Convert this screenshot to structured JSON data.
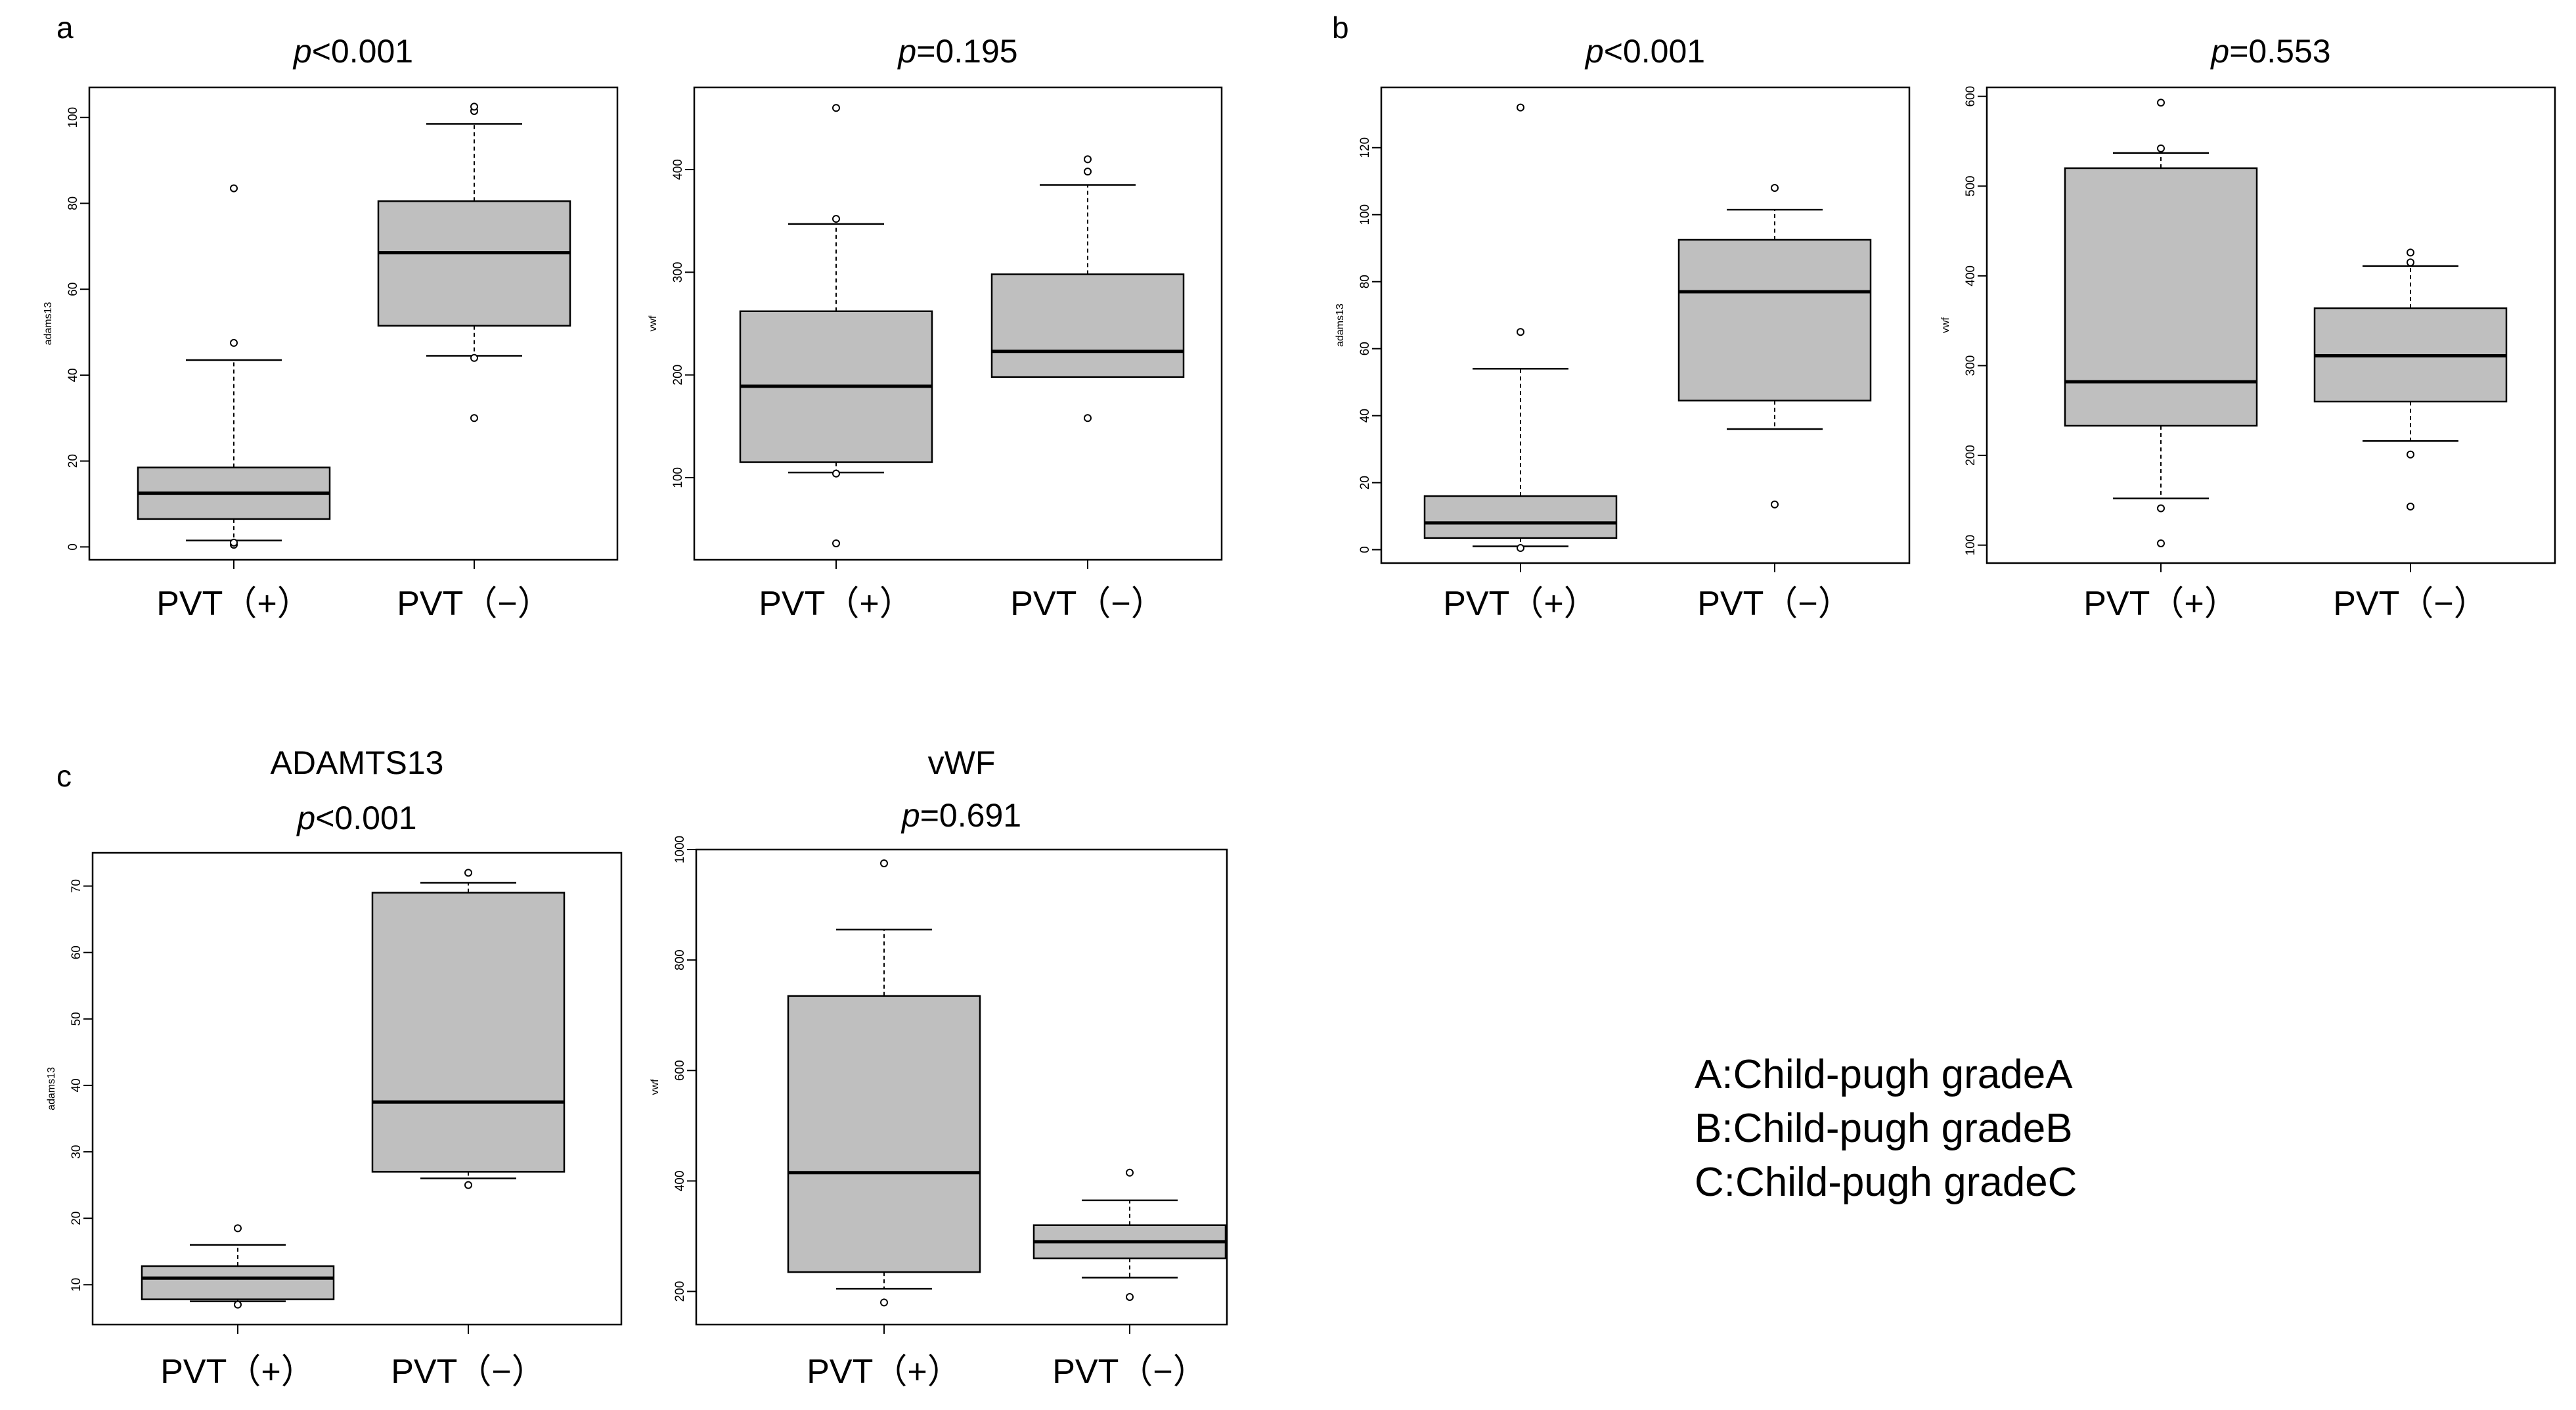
{
  "legend": [
    "A:Child-pugh gradeA",
    "B:Child-pugh gradeB",
    "C:Child-pugh gradeC"
  ],
  "chart_data": [
    {
      "panel": "a",
      "type": "box",
      "title_prefix": "p",
      "title_rest": "<0.001",
      "ylabel": "adams13",
      "ylim": [
        -3,
        107
      ],
      "yticks": [
        0,
        20,
        40,
        60,
        80,
        100
      ],
      "categories": [
        "PVT（+）",
        "PVT（−）"
      ],
      "series": [
        {
          "name": "PVT（+）",
          "whisker_low": 1.5,
          "q1": 6.5,
          "median": 12.5,
          "q3": 18.5,
          "whisker_high": 43.5,
          "outliers": [
            0.5,
            1.0,
            47.5,
            83.5
          ]
        },
        {
          "name": "PVT（−）",
          "whisker_low": 44.5,
          "q1": 51.5,
          "median": 68.5,
          "q3": 80.5,
          "whisker_high": 98.5,
          "outliers": [
            30.0,
            44.0,
            101.5,
            102.5
          ]
        }
      ]
    },
    {
      "panel": "a",
      "type": "box",
      "title_prefix": "p",
      "title_rest": "=0.195",
      "ylabel": "vwf",
      "ylim": [
        20,
        480
      ],
      "yticks": [
        100,
        200,
        300,
        400
      ],
      "categories": [
        "PVT（+）",
        "PVT（−）"
      ],
      "series": [
        {
          "name": "PVT（+）",
          "whisker_low": 105,
          "q1": 115,
          "median": 189,
          "q3": 262,
          "whisker_high": 347,
          "outliers": [
            36,
            104,
            352,
            460
          ]
        },
        {
          "name": "PVT（−）",
          "whisker_low": 198,
          "q1": 198,
          "median": 223,
          "q3": 298,
          "whisker_high": 385,
          "outliers": [
            158,
            398,
            410
          ]
        }
      ]
    },
    {
      "panel": "b",
      "type": "box",
      "title_prefix": "p",
      "title_rest": "<0.001",
      "ylabel": "adams13",
      "ylim": [
        -4,
        138
      ],
      "yticks": [
        0,
        20,
        40,
        60,
        80,
        100,
        120
      ],
      "categories": [
        "PVT（+）",
        "PVT（−）"
      ],
      "series": [
        {
          "name": "PVT（+）",
          "whisker_low": 1,
          "q1": 3.5,
          "median": 8,
          "q3": 16,
          "whisker_high": 54,
          "outliers": [
            0.5,
            65,
            132
          ]
        },
        {
          "name": "PVT（−）",
          "whisker_low": 36,
          "q1": 44.5,
          "median": 77,
          "q3": 92.5,
          "whisker_high": 101.5,
          "outliers": [
            13.5,
            108
          ]
        }
      ]
    },
    {
      "panel": "b",
      "type": "box",
      "title_prefix": "p",
      "title_rest": "=0.553",
      "ylabel": "vwf",
      "ylim": [
        80,
        610
      ],
      "yticks": [
        100,
        200,
        300,
        400,
        500,
        600
      ],
      "categories": [
        "PVT（+）",
        "PVT（−）"
      ],
      "series": [
        {
          "name": "PVT（+）",
          "whisker_low": 152,
          "q1": 233,
          "median": 282,
          "q3": 520,
          "whisker_high": 537,
          "outliers": [
            102,
            141,
            542,
            593
          ]
        },
        {
          "name": "PVT（−）",
          "whisker_low": 216,
          "q1": 260,
          "median": 311,
          "q3": 364,
          "whisker_high": 411,
          "outliers": [
            143,
            201,
            415,
            426
          ]
        }
      ]
    },
    {
      "panel": "c",
      "type": "box",
      "title_top": "ADAMTS13",
      "title_prefix": "p",
      "title_rest": "<0.001",
      "ylabel": "adams13",
      "ylim": [
        4,
        75
      ],
      "yticks": [
        10,
        20,
        30,
        40,
        50,
        60,
        70
      ],
      "categories": [
        "PVT（+）",
        "PVT（−）"
      ],
      "series": [
        {
          "name": "PVT（+）",
          "whisker_low": 7.5,
          "q1": 7.8,
          "median": 11,
          "q3": 12.8,
          "whisker_high": 16,
          "outliers": [
            7.0,
            18.5
          ]
        },
        {
          "name": "PVT（−）",
          "whisker_low": 26,
          "q1": 27,
          "median": 37.5,
          "q3": 69,
          "whisker_high": 70.5,
          "outliers": [
            25.0,
            72.0
          ]
        }
      ]
    },
    {
      "panel": "c",
      "type": "box",
      "title_top": "vWF",
      "title_prefix": "p",
      "title_rest": "=0.691",
      "ylabel": "vwf",
      "ylim": [
        140,
        1000
      ],
      "yticks": [
        200,
        400,
        600,
        800,
        1000
      ],
      "categories": [
        "PVT（+）",
        "PVT（−）"
      ],
      "series": [
        {
          "name": "PVT（+）",
          "whisker_low": 205,
          "q1": 235,
          "median": 415,
          "q3": 735,
          "whisker_high": 855,
          "outliers": [
            180,
            975
          ]
        },
        {
          "name": "PVT（−）",
          "whisker_low": 225,
          "q1": 260,
          "median": 290,
          "q3": 320,
          "whisker_high": 365,
          "outliers": [
            190,
            415
          ]
        }
      ]
    }
  ]
}
